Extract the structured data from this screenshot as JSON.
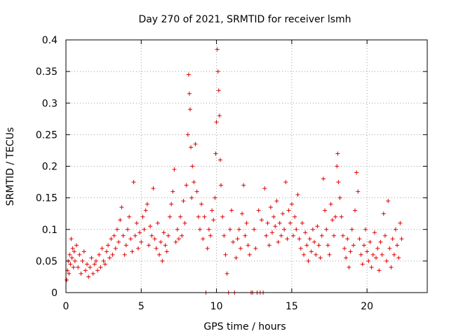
{
  "chart_data": {
    "type": "scatter",
    "title": "Day 270 of 2021, SRMTID for receiver lsmh",
    "xlabel": "GPS time / hours",
    "ylabel": "SRMTID / TECUs",
    "xlim": [
      0,
      24
    ],
    "ylim": [
      0,
      0.4
    ],
    "x_ticks": [
      0,
      5,
      10,
      15,
      20
    ],
    "x_tick_labels": [
      "0",
      "5",
      "10",
      "15",
      "20"
    ],
    "y_ticks": [
      0,
      0.05,
      0.1,
      0.15,
      0.2,
      0.25,
      0.3,
      0.35,
      0.4
    ],
    "y_tick_labels": [
      "0",
      "0.05",
      "0.1",
      "0.15",
      "0.2",
      "0.25",
      "0.3",
      "0.35",
      "0.4"
    ],
    "grid": true,
    "marker": "plus",
    "color": "#e00000",
    "series": [
      {
        "name": "SRMTID",
        "points": [
          [
            0.05,
            0.02
          ],
          [
            0.1,
            0.035
          ],
          [
            0.15,
            0.05
          ],
          [
            0.2,
            0.03
          ],
          [
            0.25,
            0.06
          ],
          [
            0.3,
            0.045
          ],
          [
            0.35,
            0.085
          ],
          [
            0.4,
            0.055
          ],
          [
            0.45,
            0.07
          ],
          [
            0.5,
            0.04
          ],
          [
            0.55,
            0.065
          ],
          [
            0.6,
            0.05
          ],
          [
            0.7,
            0.075
          ],
          [
            0.8,
            0.04
          ],
          [
            0.9,
            0.06
          ],
          [
            1.0,
            0.03
          ],
          [
            1.1,
            0.05
          ],
          [
            1.2,
            0.065
          ],
          [
            1.3,
            0.035
          ],
          [
            1.4,
            0.045
          ],
          [
            1.5,
            0.025
          ],
          [
            1.6,
            0.04
          ],
          [
            1.7,
            0.055
          ],
          [
            1.8,
            0.03
          ],
          [
            1.9,
            0.045
          ],
          [
            2.0,
            0.05
          ],
          [
            2.1,
            0.035
          ],
          [
            2.2,
            0.06
          ],
          [
            2.3,
            0.04
          ],
          [
            2.4,
            0.07
          ],
          [
            2.5,
            0.05
          ],
          [
            2.6,
            0.045
          ],
          [
            2.7,
            0.065
          ],
          [
            2.8,
            0.075
          ],
          [
            2.9,
            0.055
          ],
          [
            3.0,
            0.085
          ],
          [
            3.1,
            0.06
          ],
          [
            3.2,
            0.09
          ],
          [
            3.3,
            0.07
          ],
          [
            3.4,
            0.1
          ],
          [
            3.5,
            0.08
          ],
          [
            3.6,
            0.115
          ],
          [
            3.7,
            0.135
          ],
          [
            3.8,
            0.09
          ],
          [
            3.9,
            0.06
          ],
          [
            4.0,
            0.075
          ],
          [
            4.1,
            0.1
          ],
          [
            4.2,
            0.12
          ],
          [
            4.3,
            0.085
          ],
          [
            4.4,
            0.065
          ],
          [
            4.5,
            0.175
          ],
          [
            4.6,
            0.09
          ],
          [
            4.7,
            0.11
          ],
          [
            4.8,
            0.07
          ],
          [
            4.9,
            0.095
          ],
          [
            5.0,
            0.08
          ],
          [
            5.1,
            0.12
          ],
          [
            5.2,
            0.1
          ],
          [
            5.3,
            0.13
          ],
          [
            5.4,
            0.14
          ],
          [
            5.5,
            0.075
          ],
          [
            5.6,
            0.105
          ],
          [
            5.7,
            0.09
          ],
          [
            5.8,
            0.165
          ],
          [
            5.9,
            0.085
          ],
          [
            6.0,
            0.07
          ],
          [
            6.1,
            0.11
          ],
          [
            6.2,
            0.06
          ],
          [
            6.3,
            0.08
          ],
          [
            6.4,
            0.05
          ],
          [
            6.5,
            0.095
          ],
          [
            6.6,
            0.075
          ],
          [
            6.7,
            0.065
          ],
          [
            6.8,
            0.09
          ],
          [
            6.9,
            0.12
          ],
          [
            7.0,
            0.14
          ],
          [
            7.1,
            0.16
          ],
          [
            7.2,
            0.195
          ],
          [
            7.3,
            0.08
          ],
          [
            7.4,
            0.1
          ],
          [
            7.5,
            0.085
          ],
          [
            7.6,
            0.12
          ],
          [
            7.7,
            0.09
          ],
          [
            7.8,
            0.145
          ],
          [
            7.9,
            0.11
          ],
          [
            8.0,
            0.17
          ],
          [
            8.1,
            0.25
          ],
          [
            8.15,
            0.345
          ],
          [
            8.2,
            0.315
          ],
          [
            8.25,
            0.29
          ],
          [
            8.3,
            0.23
          ],
          [
            8.35,
            0.15
          ],
          [
            8.4,
            0.2
          ],
          [
            8.5,
            0.175
          ],
          [
            8.6,
            0.235
          ],
          [
            8.7,
            0.16
          ],
          [
            8.8,
            0.12
          ],
          [
            8.9,
            0.1
          ],
          [
            9.0,
            0.14
          ],
          [
            9.1,
            0.085
          ],
          [
            9.2,
            0.12
          ],
          [
            9.3,
            0.0
          ],
          [
            9.4,
            0.07
          ],
          [
            9.5,
            0.1
          ],
          [
            9.6,
            0.09
          ],
          [
            9.7,
            0.13
          ],
          [
            9.8,
            0.115
          ],
          [
            9.9,
            0.15
          ],
          [
            9.95,
            0.22
          ],
          [
            10.0,
            0.27
          ],
          [
            10.05,
            0.385
          ],
          [
            10.1,
            0.35
          ],
          [
            10.15,
            0.32
          ],
          [
            10.2,
            0.28
          ],
          [
            10.25,
            0.21
          ],
          [
            10.3,
            0.17
          ],
          [
            10.4,
            0.12
          ],
          [
            10.5,
            0.09
          ],
          [
            10.6,
            0.06
          ],
          [
            10.7,
            0.03
          ],
          [
            10.8,
            0.0
          ],
          [
            10.9,
            0.1
          ],
          [
            11.0,
            0.13
          ],
          [
            11.1,
            0.08
          ],
          [
            11.2,
            0.0
          ],
          [
            11.3,
            0.055
          ],
          [
            11.4,
            0.085
          ],
          [
            11.5,
            0.1
          ],
          [
            11.6,
            0.07
          ],
          [
            11.7,
            0.125
          ],
          [
            11.8,
            0.17
          ],
          [
            11.9,
            0.09
          ],
          [
            12.0,
            0.11
          ],
          [
            12.1,
            0.075
          ],
          [
            12.2,
            0.06
          ],
          [
            12.3,
            0.0
          ],
          [
            12.4,
            0.0
          ],
          [
            12.5,
            0.1
          ],
          [
            12.6,
            0.07
          ],
          [
            12.7,
            0.0
          ],
          [
            12.8,
            0.13
          ],
          [
            12.9,
            0.0
          ],
          [
            13.0,
            0.115
          ],
          [
            13.1,
            0.0
          ],
          [
            13.2,
            0.165
          ],
          [
            13.3,
            0.09
          ],
          [
            13.4,
            0.11
          ],
          [
            13.5,
            0.075
          ],
          [
            13.6,
            0.135
          ],
          [
            13.7,
            0.095
          ],
          [
            13.8,
            0.12
          ],
          [
            13.9,
            0.105
          ],
          [
            14.0,
            0.145
          ],
          [
            14.1,
            0.08
          ],
          [
            14.2,
            0.11
          ],
          [
            14.3,
            0.09
          ],
          [
            14.4,
            0.125
          ],
          [
            14.5,
            0.1
          ],
          [
            14.6,
            0.175
          ],
          [
            14.7,
            0.085
          ],
          [
            14.8,
            0.13
          ],
          [
            14.9,
            0.11
          ],
          [
            15.0,
            0.14
          ],
          [
            15.1,
            0.09
          ],
          [
            15.2,
            0.12
          ],
          [
            15.3,
            0.1
          ],
          [
            15.4,
            0.155
          ],
          [
            15.5,
            0.085
          ],
          [
            15.6,
            0.07
          ],
          [
            15.7,
            0.11
          ],
          [
            15.8,
            0.06
          ],
          [
            15.9,
            0.095
          ],
          [
            16.0,
            0.075
          ],
          [
            16.1,
            0.05
          ],
          [
            16.2,
            0.085
          ],
          [
            16.3,
            0.065
          ],
          [
            16.4,
            0.1
          ],
          [
            16.5,
            0.08
          ],
          [
            16.6,
            0.06
          ],
          [
            16.7,
            0.105
          ],
          [
            16.8,
            0.075
          ],
          [
            16.9,
            0.055
          ],
          [
            17.0,
            0.09
          ],
          [
            17.1,
            0.18
          ],
          [
            17.2,
            0.13
          ],
          [
            17.3,
            0.1
          ],
          [
            17.4,
            0.075
          ],
          [
            17.5,
            0.06
          ],
          [
            17.6,
            0.14
          ],
          [
            17.7,
            0.115
          ],
          [
            17.8,
            0.09
          ],
          [
            17.9,
            0.12
          ],
          [
            18.0,
            0.2
          ],
          [
            18.05,
            0.22
          ],
          [
            18.1,
            0.175
          ],
          [
            18.2,
            0.15
          ],
          [
            18.3,
            0.12
          ],
          [
            18.4,
            0.09
          ],
          [
            18.5,
            0.07
          ],
          [
            18.6,
            0.055
          ],
          [
            18.7,
            0.085
          ],
          [
            18.8,
            0.04
          ],
          [
            18.9,
            0.065
          ],
          [
            19.0,
            0.1
          ],
          [
            19.1,
            0.075
          ],
          [
            19.2,
            0.13
          ],
          [
            19.3,
            0.19
          ],
          [
            19.4,
            0.16
          ],
          [
            19.5,
            0.085
          ],
          [
            19.6,
            0.06
          ],
          [
            19.7,
            0.045
          ],
          [
            19.8,
            0.075
          ],
          [
            19.9,
            0.1
          ],
          [
            20.0,
            0.065
          ],
          [
            20.1,
            0.05
          ],
          [
            20.2,
            0.08
          ],
          [
            20.3,
            0.04
          ],
          [
            20.4,
            0.06
          ],
          [
            20.5,
            0.095
          ],
          [
            20.6,
            0.055
          ],
          [
            20.7,
            0.07
          ],
          [
            20.8,
            0.035
          ],
          [
            20.9,
            0.08
          ],
          [
            21.0,
            0.06
          ],
          [
            21.1,
            0.125
          ],
          [
            21.2,
            0.09
          ],
          [
            21.3,
            0.05
          ],
          [
            21.4,
            0.145
          ],
          [
            21.5,
            0.07
          ],
          [
            21.6,
            0.04
          ],
          [
            21.7,
            0.085
          ],
          [
            21.8,
            0.06
          ],
          [
            21.9,
            0.1
          ],
          [
            22.0,
            0.075
          ],
          [
            22.1,
            0.055
          ],
          [
            22.2,
            0.11
          ],
          [
            22.3,
            0.085
          ]
        ]
      }
    ]
  }
}
